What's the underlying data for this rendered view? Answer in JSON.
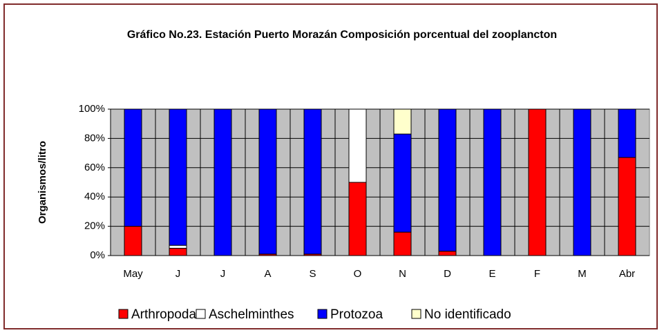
{
  "chart_data": {
    "type": "stacked_bar",
    "title": "Gráfico No.23. Estación Puerto Morazán Composición porcentual del zooplancton",
    "ylabel": "Organismos/litro",
    "categories": [
      "May",
      "J",
      "J",
      "A",
      "S",
      "O",
      "N",
      "D",
      "E",
      "F",
      "M",
      "Abr"
    ],
    "series": [
      {
        "name": "Arthropoda",
        "color": "#ff0000",
        "values": [
          20,
          5,
          0,
          1,
          1,
          50,
          16,
          3,
          0,
          100,
          0,
          67
        ]
      },
      {
        "name": "Aschelminthes",
        "color": "#ffffff",
        "values": [
          0,
          2,
          0,
          0,
          0,
          50,
          0,
          0,
          0,
          0,
          0,
          0
        ]
      },
      {
        "name": "Protozoa",
        "color": "#0000ff",
        "values": [
          80,
          93,
          100,
          99,
          99,
          0,
          67,
          97,
          100,
          0,
          100,
          33
        ]
      },
      {
        "name": "No identificado",
        "color": "#ffffcc",
        "values": [
          0,
          0,
          0,
          0,
          0,
          0,
          17,
          0,
          0,
          0,
          0,
          0
        ]
      }
    ],
    "ylim": [
      0,
      100
    ],
    "yticks": [
      {
        "value": 0,
        "label": "0%"
      },
      {
        "value": 20,
        "label": "20%"
      },
      {
        "value": 40,
        "label": "40%"
      },
      {
        "value": 60,
        "label": "60%"
      },
      {
        "value": 80,
        "label": "80%"
      },
      {
        "value": 100,
        "label": "100%"
      }
    ],
    "grid": true,
    "legend": "bottom"
  }
}
